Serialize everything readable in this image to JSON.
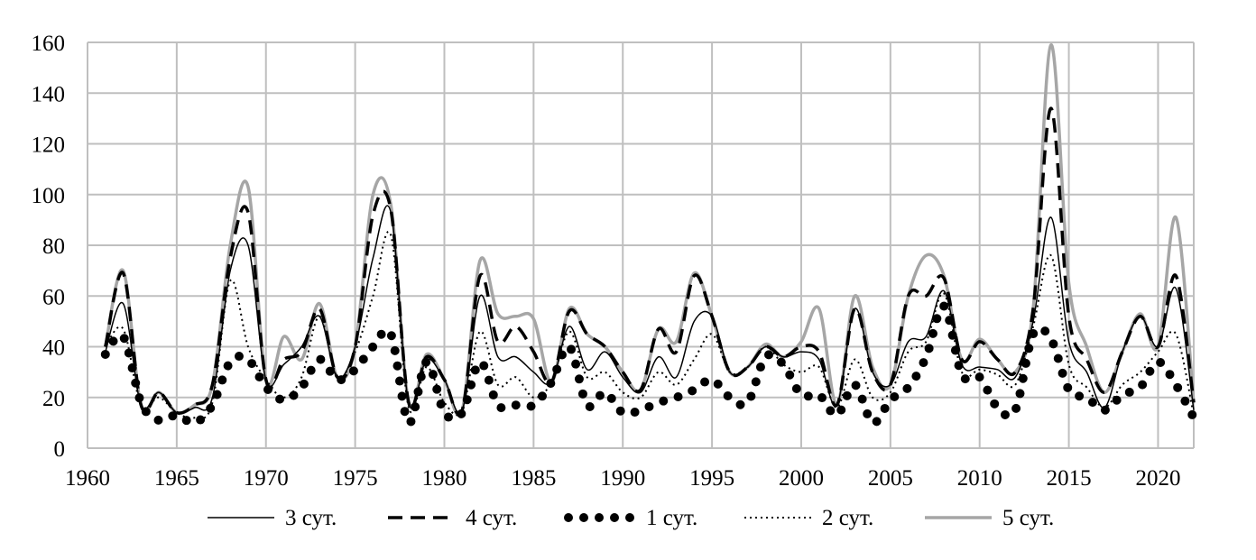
{
  "chart_data": {
    "type": "line",
    "title": "",
    "xlabel": "",
    "ylabel": "",
    "xlim": [
      1960,
      2022
    ],
    "ylim": [
      0,
      160
    ],
    "grid": true,
    "legend_position": "bottom",
    "x_ticks": [
      "1960",
      "1965",
      "1970",
      "1975",
      "1980",
      "1985",
      "1990",
      "1995",
      "2000",
      "2005",
      "2010",
      "2015",
      "2020"
    ],
    "y_ticks": [
      "0",
      "20",
      "40",
      "60",
      "80",
      "100",
      "120",
      "140",
      "160"
    ],
    "x": [
      1961,
      1962,
      1963,
      1964,
      1965,
      1966,
      1967,
      1968,
      1969,
      1970,
      1971,
      1972,
      1973,
      1974,
      1975,
      1976,
      1977,
      1978,
      1979,
      1980,
      1981,
      1982,
      1983,
      1984,
      1985,
      1986,
      1987,
      1988,
      1989,
      1990,
      1991,
      1992,
      1993,
      1994,
      1995,
      1996,
      1997,
      1998,
      1999,
      2000,
      2001,
      2002,
      2003,
      2004,
      2005,
      2006,
      2007,
      2008,
      2009,
      2010,
      2011,
      2012,
      2013,
      2014,
      2015,
      2016,
      2017,
      2018,
      2019,
      2020,
      2021,
      2022
    ],
    "series": [
      {
        "name": "3 сут.",
        "style": "solid",
        "color": "#000000",
        "values": [
          38,
          57,
          17,
          22,
          14,
          16,
          20,
          70,
          80,
          27,
          33,
          40,
          52,
          28,
          40,
          75,
          93,
          18,
          35,
          27,
          15,
          60,
          36,
          36,
          30,
          26,
          48,
          31,
          38,
          28,
          22,
          36,
          28,
          50,
          52,
          30,
          32,
          40,
          36,
          38,
          35,
          17,
          55,
          30,
          25,
          42,
          44,
          62,
          33,
          32,
          31,
          28,
          50,
          91,
          42,
          30,
          16,
          38,
          52,
          40,
          63,
          15
        ]
      },
      {
        "name": "4 сут.",
        "style": "dashed",
        "color": "#000000",
        "values": [
          40,
          69,
          17,
          22,
          14,
          17,
          25,
          75,
          93,
          27,
          35,
          38,
          55,
          28,
          40,
          92,
          94,
          18,
          36,
          27,
          15,
          68,
          42,
          48,
          38,
          26,
          54,
          45,
          40,
          30,
          23,
          47,
          38,
          68,
          52,
          30,
          32,
          40,
          36,
          40,
          38,
          17,
          55,
          30,
          25,
          60,
          60,
          67,
          35,
          42,
          35,
          30,
          55,
          134,
          52,
          35,
          22,
          38,
          52,
          40,
          68,
          18
        ]
      },
      {
        "name": "1 сут.",
        "style": "dots",
        "color": "#000000",
        "values": [
          37,
          44,
          18,
          11,
          13,
          10,
          17,
          34,
          35,
          24,
          19,
          24,
          35,
          27,
          31,
          40,
          45,
          10,
          34,
          14,
          14,
          34,
          17,
          17,
          17,
          26,
          40,
          17,
          22,
          14,
          15,
          18,
          20,
          23,
          27,
          20,
          18,
          36,
          33,
          21,
          21,
          13,
          25,
          10,
          19,
          24,
          36,
          56,
          29,
          28,
          16,
          15,
          45,
          43,
          23,
          20,
          15,
          21,
          24,
          34,
          25,
          12
        ]
      },
      {
        "name": "2 сут.",
        "style": "dotted",
        "color": "#000000",
        "values": [
          40,
          47,
          17,
          20,
          14,
          12,
          18,
          66,
          40,
          27,
          20,
          28,
          52,
          28,
          38,
          60,
          84,
          16,
          32,
          18,
          15,
          46,
          25,
          28,
          20,
          26,
          46,
          28,
          30,
          22,
          20,
          30,
          25,
          35,
          45,
          30,
          32,
          40,
          33,
          30,
          32,
          16,
          35,
          20,
          22,
          38,
          42,
          61,
          30,
          31,
          29,
          25,
          48,
          76,
          33,
          24,
          16,
          25,
          30,
          38,
          45,
          13
        ]
      },
      {
        "name": "5 сут.",
        "style": "solid",
        "color": "#a6a6a6",
        "values": [
          40,
          70,
          17,
          22,
          14,
          17,
          25,
          80,
          103,
          27,
          44,
          35,
          57,
          28,
          40,
          100,
          96,
          18,
          37,
          27,
          15,
          74,
          53,
          52,
          51,
          26,
          55,
          45,
          40,
          30,
          23,
          47,
          42,
          69,
          52,
          30,
          32,
          41,
          36,
          42,
          55,
          17,
          60,
          32,
          25,
          60,
          76,
          68,
          35,
          43,
          35,
          30,
          55,
          159,
          65,
          40,
          22,
          38,
          53,
          40,
          91,
          18
        ]
      }
    ]
  }
}
